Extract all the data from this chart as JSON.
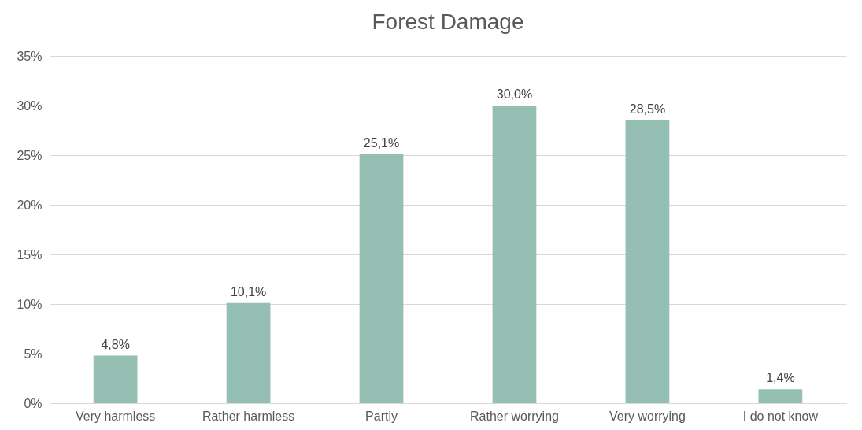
{
  "chart_data": {
    "type": "bar",
    "title": "Forest Damage",
    "categories": [
      "Very harmless",
      "Rather harmless",
      "Partly",
      "Rather worrying",
      "Very worrying",
      "I do not know"
    ],
    "values": [
      4.8,
      10.1,
      25.1,
      30.0,
      28.5,
      1.4
    ],
    "value_labels": [
      "4,8%",
      "10,1%",
      "25,1%",
      "30,0%",
      "28,5%",
      "1,4%"
    ],
    "color": "#96bfb4",
    "ylim": [
      0,
      35
    ],
    "yticks": [
      {
        "value": 0,
        "label": "0%"
      },
      {
        "value": 5,
        "label": "5%"
      },
      {
        "value": 10,
        "label": "10%"
      },
      {
        "value": 15,
        "label": "15%"
      },
      {
        "value": 20,
        "label": "20%"
      },
      {
        "value": 25,
        "label": "25%"
      },
      {
        "value": 30,
        "label": "30%"
      },
      {
        "value": 35,
        "label": "35%"
      }
    ],
    "grid": "y"
  }
}
